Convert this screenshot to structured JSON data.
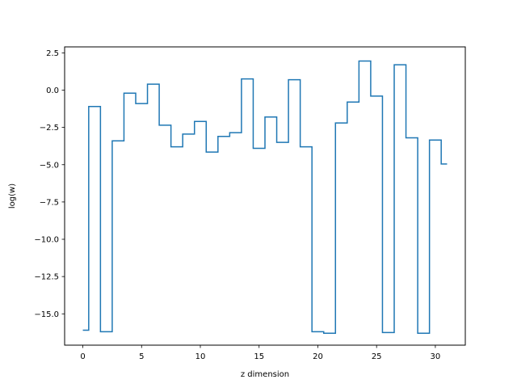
{
  "chart_data": {
    "type": "line",
    "drawstyle": "steps-mid",
    "title": "",
    "xlabel": "z dimension",
    "ylabel": "log(w)",
    "xlim": [
      -1.55,
      32.55
    ],
    "ylim": [
      -17.1,
      2.9
    ],
    "xticks": [
      0,
      5,
      10,
      15,
      20,
      25,
      30
    ],
    "xtick_labels": [
      "0",
      "5",
      "10",
      "15",
      "20",
      "25",
      "30"
    ],
    "yticks": [
      2.5,
      0.0,
      -2.5,
      -5.0,
      -7.5,
      -10.0,
      -12.5,
      -15.0
    ],
    "ytick_labels": [
      "2.5",
      "0.0",
      "−2.5",
      "−5.0",
      "−7.5",
      "−10.0",
      "−12.5",
      "−15.0"
    ],
    "grid": false,
    "legend": false,
    "series": [
      {
        "color": "#1f77b4",
        "x": [
          0,
          1,
          2,
          3,
          4,
          5,
          6,
          7,
          8,
          9,
          10,
          11,
          12,
          13,
          14,
          15,
          16,
          17,
          18,
          19,
          20,
          21,
          22,
          23,
          24,
          25,
          26,
          27,
          28,
          29,
          30,
          31
        ],
        "y": [
          -16.1,
          -1.1,
          -16.2,
          -3.4,
          -0.2,
          -0.9,
          0.4,
          -2.35,
          -3.8,
          -2.95,
          -2.1,
          -4.15,
          -3.1,
          -2.85,
          0.75,
          -3.9,
          -1.8,
          -3.5,
          0.7,
          -3.8,
          -16.2,
          -16.3,
          -2.2,
          -0.8,
          1.95,
          -0.4,
          -16.25,
          1.7,
          -3.2,
          -16.3,
          -3.35,
          -4.95
        ]
      }
    ]
  }
}
